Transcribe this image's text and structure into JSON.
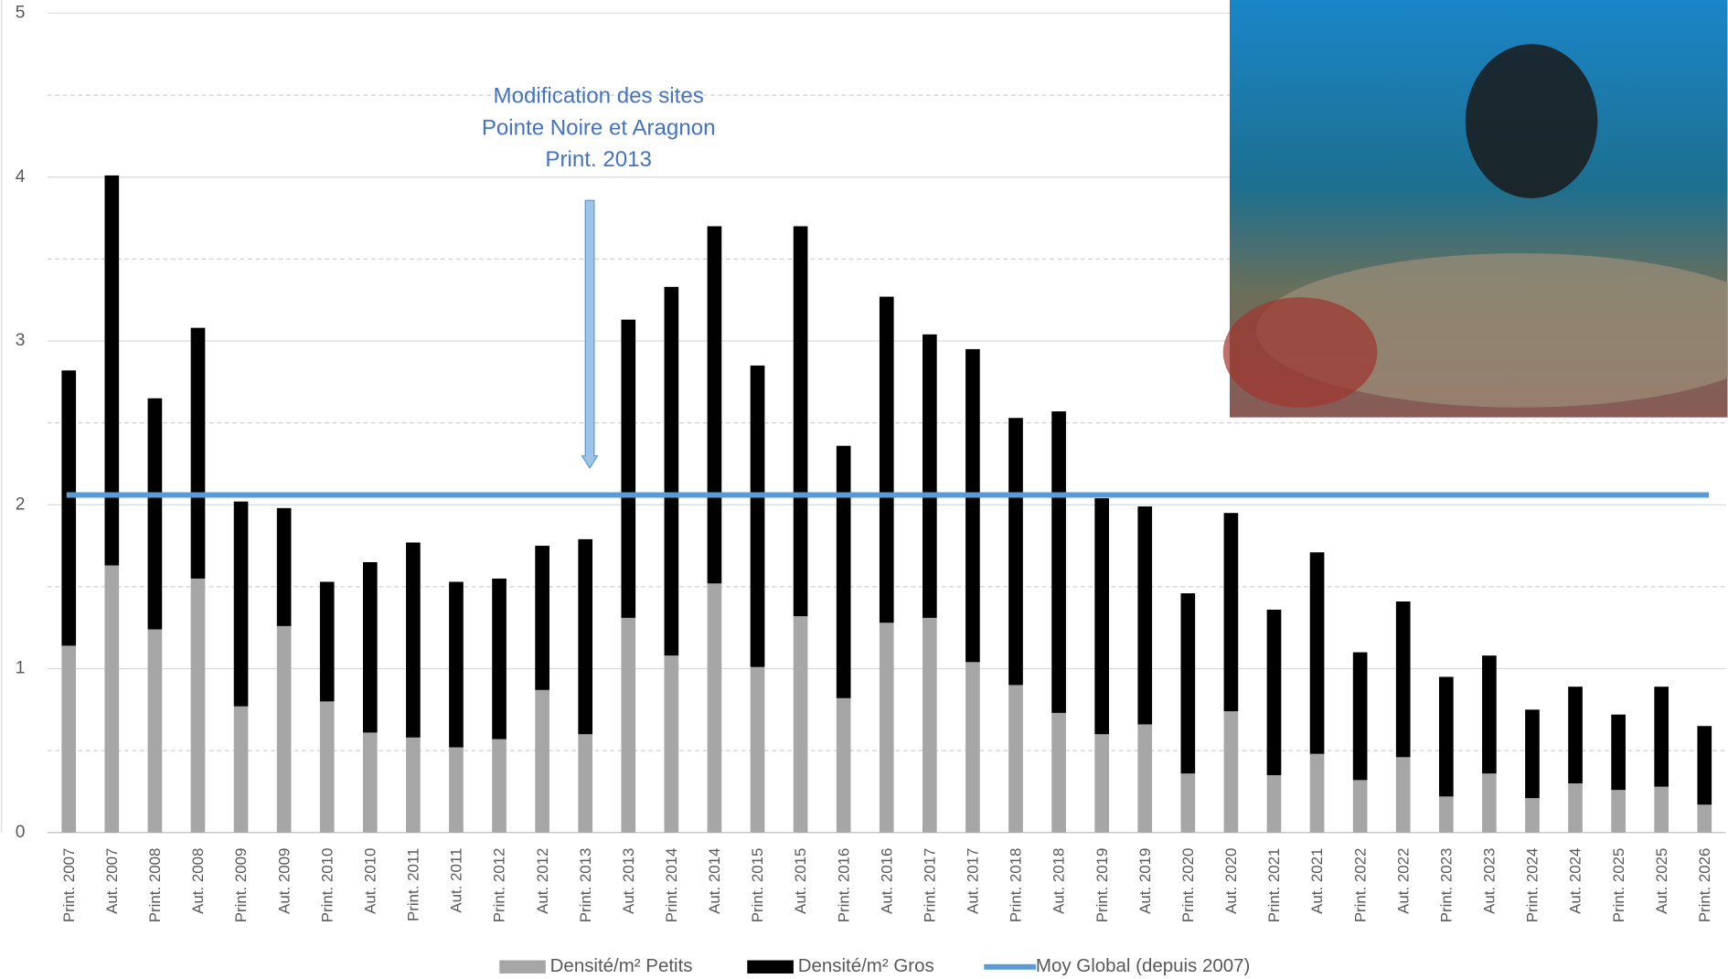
{
  "chart_data": {
    "type": "bar",
    "stacked": true,
    "categories": [
      "Print. 2007",
      "Aut. 2007",
      "Print. 2008",
      "Aut. 2008",
      "Print. 2009",
      "Aut. 2009",
      "Print. 2010",
      "Aut. 2010",
      "Print. 2011",
      "Aut. 2011",
      "Print. 2012",
      "Aut. 2012",
      "Print. 2013",
      "Aut. 2013",
      "Print. 2014",
      "Aut. 2014",
      "Print. 2015",
      "Aut. 2015",
      "Print. 2016",
      "Aut. 2016",
      "Print. 2017",
      "Aut. 2017",
      "Print. 2018",
      "Aut. 2018",
      "Print. 2019",
      "Aut. 2019",
      "Print. 2020",
      "Aut. 2020",
      "Print. 2021",
      "Aut. 2021",
      "Print. 2022",
      "Aut. 2022",
      "Print. 2023",
      "Aut. 2023",
      "Print. 2024",
      "Aut. 2024",
      "Print. 2025",
      "Aut. 2025",
      "Print. 2026"
    ],
    "series": [
      {
        "name": "Densité/m² Petits",
        "color": "#a6a6a6",
        "values": [
          1.14,
          1.63,
          1.24,
          1.55,
          0.77,
          1.26,
          0.8,
          0.61,
          0.58,
          0.52,
          0.57,
          0.87,
          0.6,
          1.31,
          1.08,
          1.52,
          1.01,
          1.32,
          0.82,
          1.28,
          1.31,
          1.04,
          0.9,
          0.73,
          0.6,
          0.66,
          0.36,
          0.74,
          0.35,
          0.48,
          0.32,
          0.46,
          0.22,
          0.36,
          0.21,
          0.3,
          0.26,
          0.28,
          0.17
        ]
      },
      {
        "name": "Densité/m² Gros",
        "color": "#000000",
        "values": [
          1.68,
          2.38,
          1.41,
          1.53,
          1.25,
          0.72,
          0.73,
          1.04,
          1.19,
          1.01,
          0.98,
          0.88,
          1.19,
          1.82,
          2.25,
          2.18,
          1.84,
          2.38,
          1.54,
          1.99,
          1.73,
          1.91,
          1.63,
          1.84,
          1.44,
          1.33,
          1.1,
          1.21,
          1.01,
          1.23,
          0.78,
          0.95,
          0.73,
          0.72,
          0.54,
          0.59,
          0.46,
          0.61,
          0.48
        ]
      }
    ],
    "reference_line": {
      "name": "Moy Global (depuis 2007)",
      "color": "#5b9bd5",
      "value": 2.06
    },
    "annotation": [
      "Modification des sites",
      "Pointe Noire et Aragnon",
      "Print. 2013"
    ],
    "ylim": [
      0,
      5
    ],
    "yticks": [
      0,
      1,
      2,
      3,
      4,
      5
    ],
    "grid": true,
    "minor_grid": true,
    "legend": "bottom"
  }
}
